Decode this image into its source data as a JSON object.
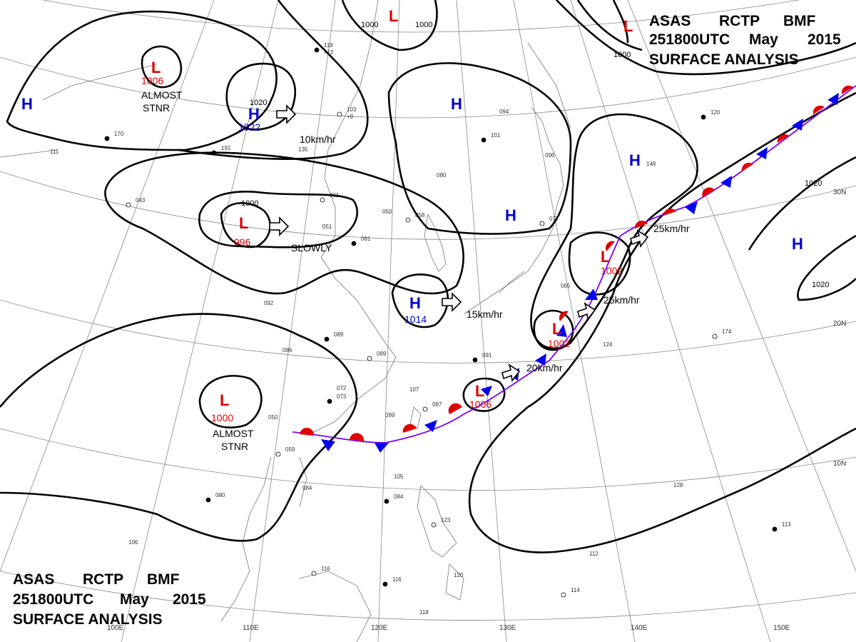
{
  "header_top": {
    "line1": [
      "ASAS",
      "RCTP",
      "BMF"
    ],
    "line2": [
      "251800UTC",
      "May",
      "2015"
    ],
    "line3": "SURFACE ANALYSIS"
  },
  "header_bottom": {
    "line1": [
      "ASAS",
      "RCTP",
      "BMF"
    ],
    "line2": [
      "251800UTC",
      "May",
      "2015"
    ],
    "line3": "SURFACE ANALYSIS"
  },
  "longitude_labels": [
    "110E",
    "120E",
    "130E",
    "140E",
    "150E",
    "100E"
  ],
  "latitude_labels": [
    "30N",
    "20N",
    "10N"
  ],
  "isobar_labels": [
    "1000",
    "1000",
    "1000",
    "1000",
    "1020",
    "1020",
    "1020"
  ],
  "pressure_centers": [
    {
      "type": "L",
      "value": "1006"
    },
    {
      "type": "H",
      "value": "1022"
    },
    {
      "type": "L",
      "value": "996"
    },
    {
      "type": "L",
      "value": "1000"
    },
    {
      "type": "H",
      "value": "1014"
    },
    {
      "type": "L",
      "value": "1006"
    },
    {
      "type": "L",
      "value": "1002"
    },
    {
      "type": "L",
      "value": "1002"
    },
    {
      "type": "H",
      "value": ""
    },
    {
      "type": "H",
      "value": ""
    },
    {
      "type": "H",
      "value": ""
    },
    {
      "type": "H",
      "value": ""
    },
    {
      "type": "H",
      "value": ""
    },
    {
      "type": "L",
      "value": ""
    },
    {
      "type": "L",
      "value": ""
    }
  ],
  "motion_labels": [
    "ALMOST STNR",
    "10km/hr",
    "SLOWLY",
    "ALMOST STNR",
    "15km/hr",
    "20km/hr",
    "25km/hr",
    "25km/hr"
  ],
  "station_labels": [
    "118",
    "+12",
    "103",
    "+9",
    "191",
    "135",
    "043",
    "051",
    "061",
    "050",
    "058",
    "092",
    "089",
    "086",
    "089",
    "072",
    "073",
    "050",
    "059",
    "084",
    "080",
    "106",
    "116",
    "105",
    "084",
    "107",
    "087",
    "099",
    "116",
    "120",
    "123",
    "094",
    "101",
    "096",
    "077",
    "065",
    "091",
    "124",
    "174",
    "128",
    "113",
    "112",
    "114",
    "118",
    "170",
    "111",
    "001",
    "080",
    "120",
    "148"
  ]
}
